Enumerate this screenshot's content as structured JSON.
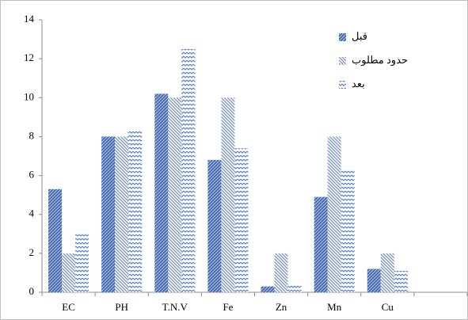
{
  "chart_data": {
    "type": "bar",
    "categories": [
      "EC",
      "PH",
      "T.N.V",
      "Fe",
      "Zn",
      "Mn",
      "Cu",
      null
    ],
    "series": [
      {
        "name": "قبل",
        "color": "#4a6fb5",
        "values": [
          5.3,
          8,
          10.2,
          6.8,
          0.3,
          4.9,
          1.2,
          null
        ]
      },
      {
        "name": "حدود مطلوب",
        "color": "#7b93cc",
        "values": [
          2,
          8,
          10,
          10,
          2,
          8,
          2,
          null
        ]
      },
      {
        "name": "بعد",
        "color": "#5a7fc4",
        "values": [
          3,
          8.3,
          12.5,
          7.4,
          0.4,
          6.3,
          1.1,
          null
        ]
      }
    ],
    "ylim": [
      0,
      14
    ],
    "yticks": [
      0,
      2,
      4,
      6,
      8,
      10,
      12,
      14
    ],
    "legend": "upper-right"
  }
}
